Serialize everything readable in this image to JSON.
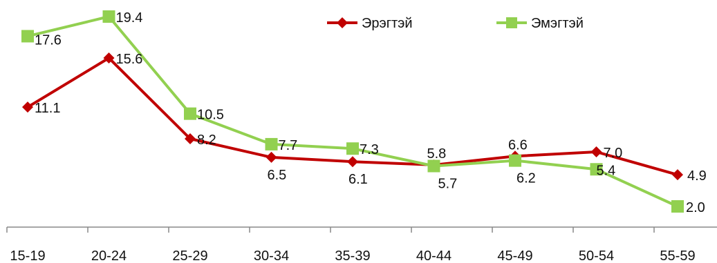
{
  "chart_data": {
    "type": "line",
    "categories": [
      "15-19",
      "20-24",
      "25-29",
      "30-34",
      "35-39",
      "40-44",
      "45-49",
      "50-54",
      "55-59"
    ],
    "series": [
      {
        "name": "Эрэгтэй",
        "color": "#c00000",
        "marker": "diamond",
        "values": [
          11.1,
          15.6,
          8.2,
          6.5,
          6.1,
          5.8,
          6.6,
          7.0,
          4.9
        ],
        "labels": [
          "11.1",
          "15.6",
          "8.2",
          "6.5",
          "6.1",
          "5.8",
          "6.6",
          "7.0",
          "4.9"
        ]
      },
      {
        "name": "Эмэгтэй",
        "color": "#92d050",
        "marker": "square",
        "values": [
          17.6,
          19.4,
          10.5,
          7.7,
          7.3,
          5.7,
          6.2,
          5.4,
          2.0
        ],
        "labels": [
          "17.6",
          "19.4",
          "10.5",
          "7.7",
          "7.3",
          "5.7",
          "6.2",
          "5.4",
          "2.0"
        ]
      }
    ],
    "ylim": [
      0,
      20
    ],
    "grid": false,
    "legend_position": "top-right",
    "title": "",
    "xlabel": "",
    "ylabel": ""
  }
}
